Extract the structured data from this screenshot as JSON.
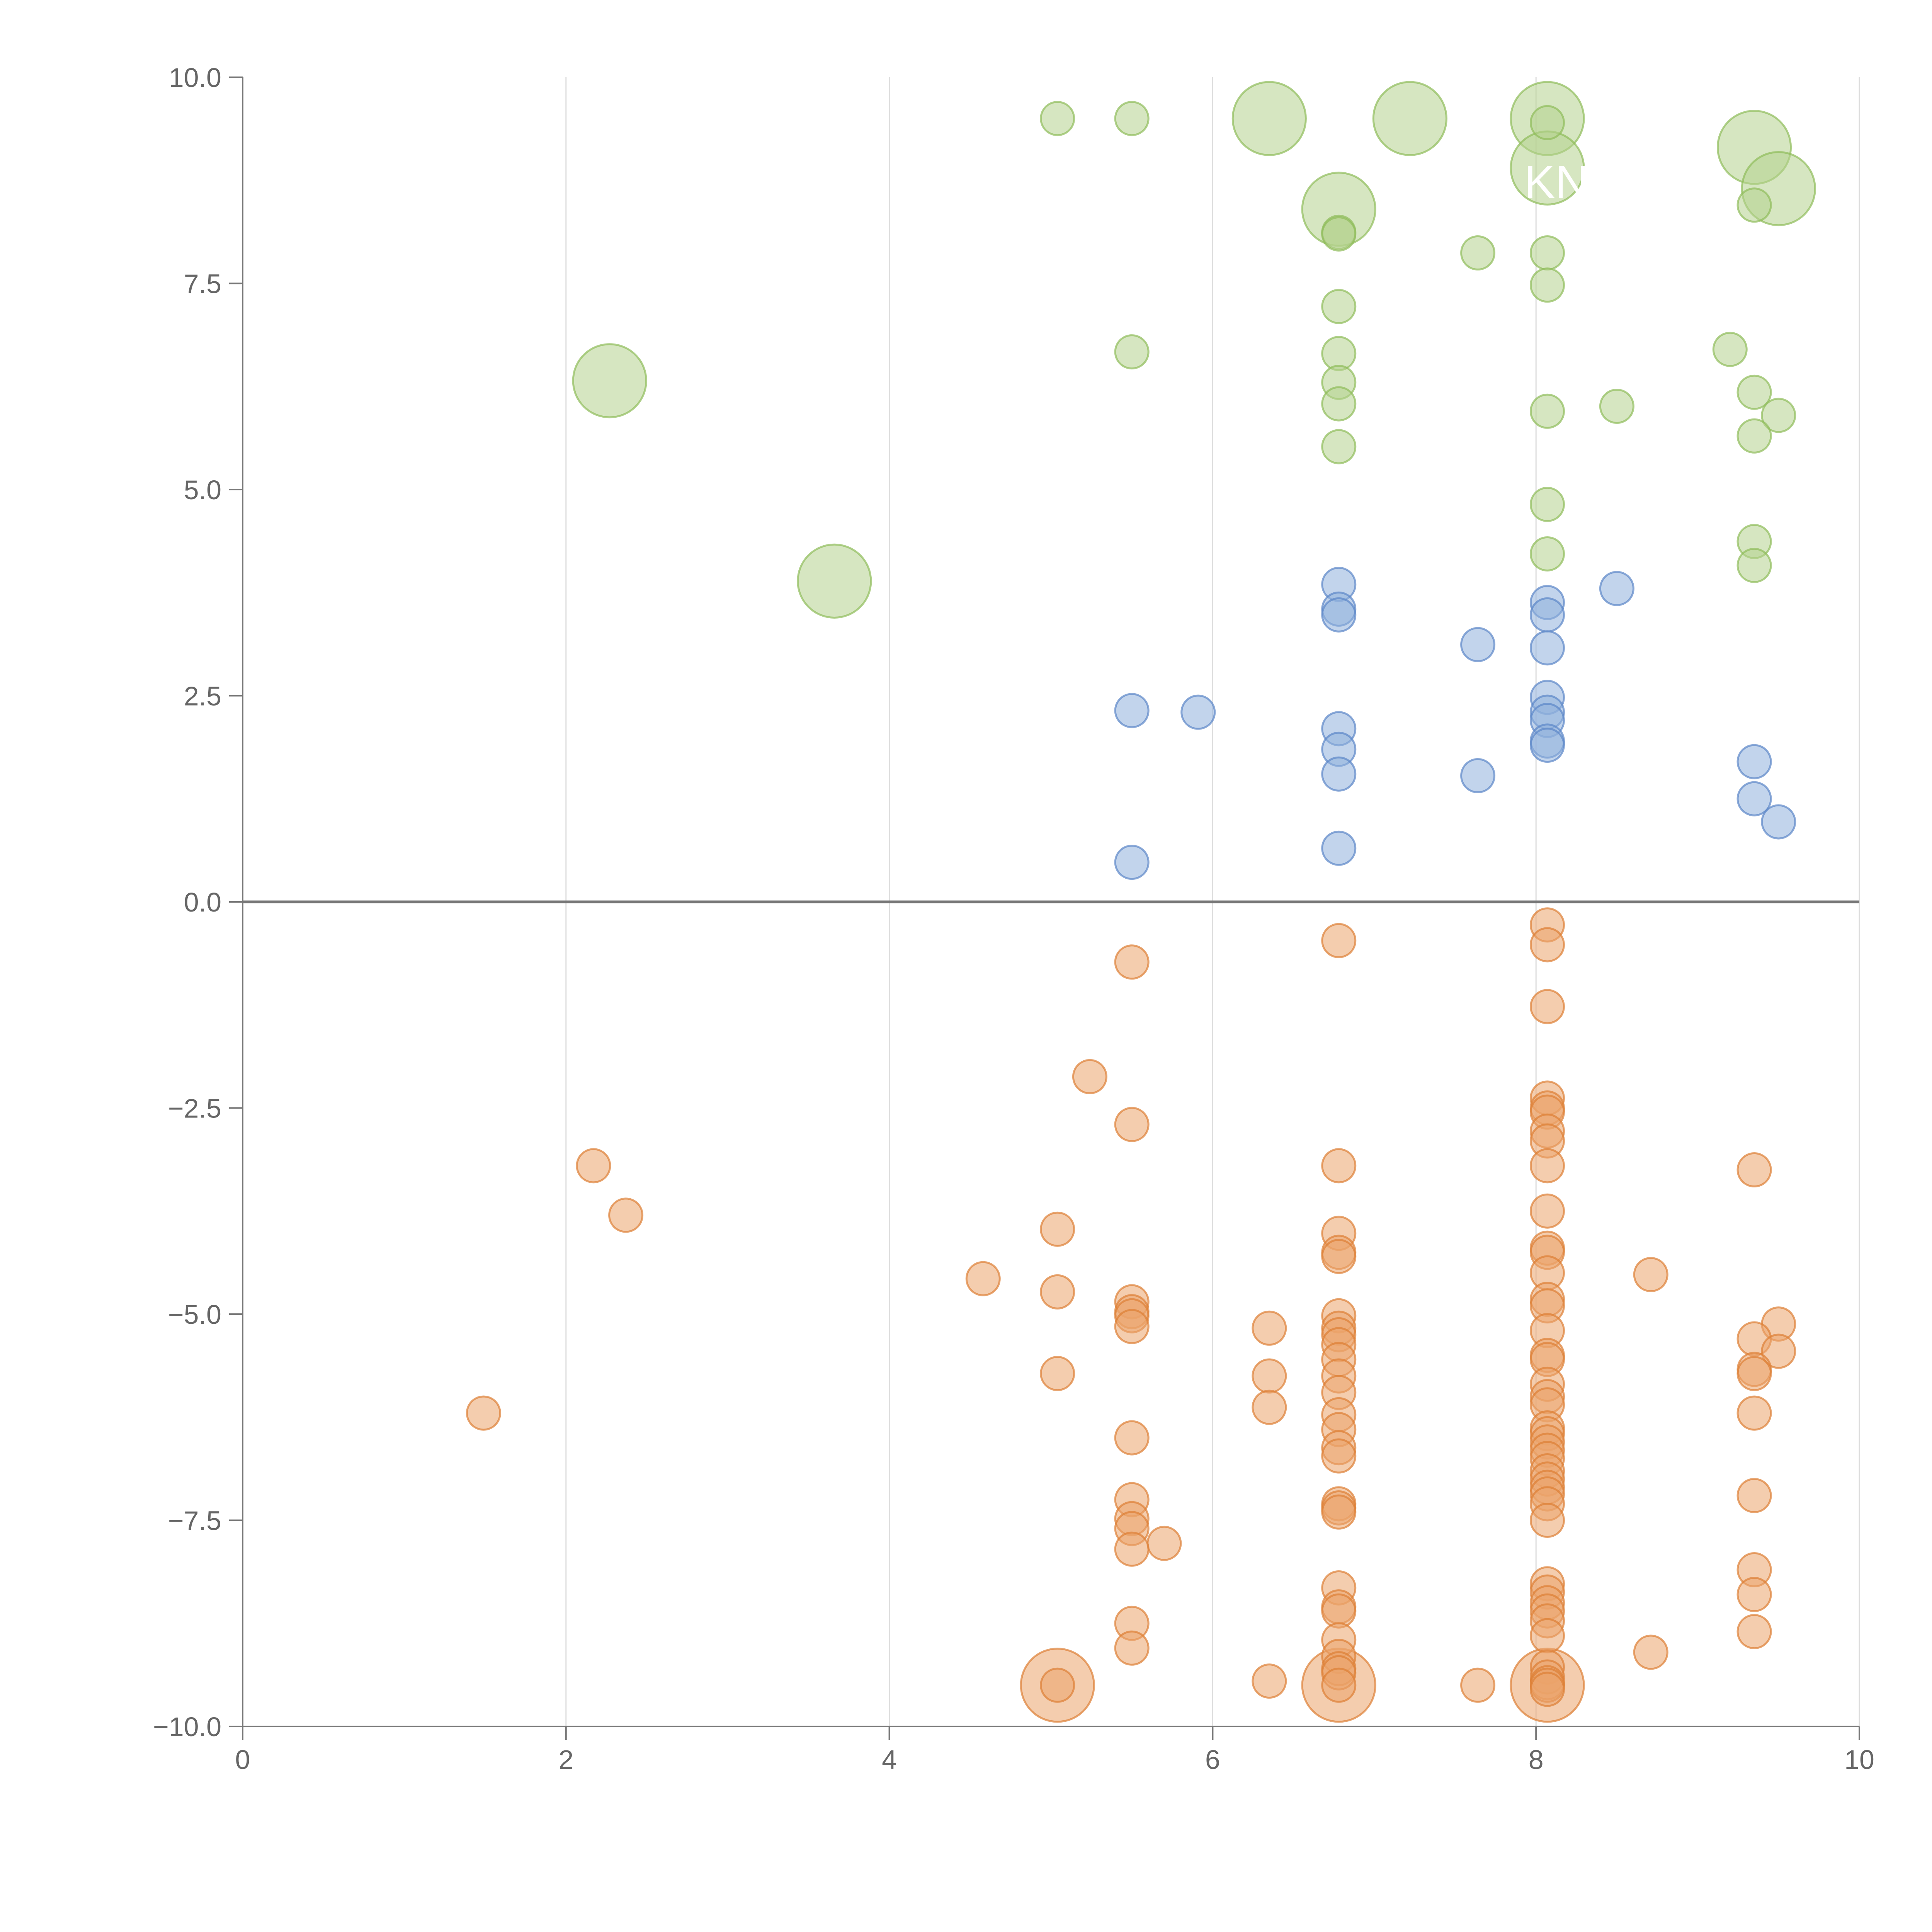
{
  "chart_data": {
    "type": "scatter",
    "title": "",
    "xlabel": "",
    "ylabel": "",
    "xlim": [
      0,
      10
    ],
    "ylim": [
      -10,
      10
    ],
    "x_ticks": [
      "0",
      "2",
      "4",
      "6",
      "8",
      "10"
    ],
    "y_ticks": [
      "10.0",
      "7.5",
      "5.0",
      "2.5",
      "0.0",
      "−2.5",
      "−5.0",
      "−7.5",
      "−10.0"
    ],
    "x_tick_values": [
      0,
      2,
      4,
      6,
      8,
      10
    ],
    "y_tick_values": [
      10,
      7.5,
      5,
      2.5,
      0,
      -2.5,
      -5,
      -7.5,
      -10
    ],
    "grid": "vertical",
    "colors": {
      "green_fill": "#b5d18e",
      "green_stroke": "#8fbc5a",
      "blue_fill": "#8fb0dd",
      "blue_stroke": "#5b86c8",
      "orange_fill": "#eba46b",
      "orange_stroke": "#dd7f35"
    },
    "series": [
      {
        "name": "green",
        "color_key": "green",
        "points": [
          [
            5.04,
            9.5,
            1
          ],
          [
            5.5,
            9.5,
            1
          ],
          [
            6.35,
            9.5,
            2.2
          ],
          [
            7.22,
            9.5,
            2.2
          ],
          [
            8.07,
            9.5,
            2.2
          ],
          [
            8.07,
            9.45,
            1
          ],
          [
            9.35,
            9.15,
            2.2
          ],
          [
            8.07,
            8.9,
            2.2
          ],
          [
            9.5,
            8.65,
            2.2
          ],
          [
            6.78,
            8.4,
            2.2
          ],
          [
            9.35,
            8.45,
            1
          ],
          [
            6.78,
            8.12,
            1
          ],
          [
            6.78,
            8.1,
            1
          ],
          [
            7.64,
            7.87,
            1
          ],
          [
            8.07,
            7.87,
            1
          ],
          [
            8.07,
            7.48,
            1
          ],
          [
            6.78,
            7.22,
            1
          ],
          [
            2.27,
            6.32,
            2.2
          ],
          [
            5.5,
            6.67,
            1
          ],
          [
            9.2,
            6.7,
            1
          ],
          [
            6.78,
            6.65,
            1
          ],
          [
            6.78,
            6.3,
            1
          ],
          [
            9.35,
            6.18,
            1
          ],
          [
            6.78,
            6.04,
            1
          ],
          [
            8.5,
            6.01,
            1
          ],
          [
            8.07,
            5.95,
            1
          ],
          [
            9.5,
            5.9,
            1
          ],
          [
            9.35,
            5.65,
            1
          ],
          [
            6.78,
            5.52,
            1
          ],
          [
            8.07,
            4.82,
            1
          ],
          [
            9.35,
            4.37,
            1
          ],
          [
            8.07,
            4.22,
            1
          ],
          [
            9.35,
            4.08,
            1
          ],
          [
            3.66,
            3.89,
            2.2
          ]
        ]
      },
      {
        "name": "blue",
        "color_key": "blue",
        "points": [
          [
            6.78,
            3.85,
            1
          ],
          [
            8.5,
            3.8,
            1
          ],
          [
            8.07,
            3.63,
            1
          ],
          [
            6.78,
            3.55,
            1
          ],
          [
            6.78,
            3.48,
            1
          ],
          [
            8.07,
            3.48,
            1
          ],
          [
            7.64,
            3.12,
            1
          ],
          [
            8.07,
            3.08,
            1
          ],
          [
            8.07,
            2.48,
            1
          ],
          [
            8.07,
            2.3,
            1
          ],
          [
            5.5,
            2.32,
            1
          ],
          [
            5.91,
            2.3,
            1
          ],
          [
            8.07,
            2.2,
            1
          ],
          [
            6.78,
            2.1,
            1
          ],
          [
            8.07,
            1.95,
            1
          ],
          [
            8.07,
            1.9,
            1
          ],
          [
            6.78,
            1.85,
            1
          ],
          [
            9.35,
            1.7,
            1
          ],
          [
            6.78,
            1.55,
            1
          ],
          [
            7.64,
            1.53,
            1
          ],
          [
            9.35,
            1.25,
            1
          ],
          [
            9.5,
            0.97,
            1
          ],
          [
            6.78,
            0.65,
            1
          ],
          [
            5.5,
            0.48,
            1
          ]
        ]
      },
      {
        "name": "orange",
        "color_key": "orange",
        "points": [
          [
            8.07,
            -0.28,
            1
          ],
          [
            6.78,
            -0.47,
            1
          ],
          [
            8.07,
            -0.52,
            1
          ],
          [
            5.5,
            -0.73,
            1
          ],
          [
            8.07,
            -1.27,
            1
          ],
          [
            5.24,
            -2.12,
            1
          ],
          [
            8.07,
            -2.38,
            1
          ],
          [
            8.07,
            -2.5,
            1
          ],
          [
            8.07,
            -2.55,
            1
          ],
          [
            5.5,
            -2.7,
            1
          ],
          [
            8.07,
            -2.78,
            1
          ],
          [
            8.07,
            -2.9,
            1
          ],
          [
            2.17,
            -3.2,
            1
          ],
          [
            6.78,
            -3.2,
            1
          ],
          [
            8.07,
            -3.2,
            1
          ],
          [
            9.35,
            -3.25,
            1
          ],
          [
            8.07,
            -3.75,
            1
          ],
          [
            2.37,
            -3.8,
            1
          ],
          [
            5.04,
            -3.97,
            1
          ],
          [
            6.78,
            -4.02,
            1
          ],
          [
            8.07,
            -4.2,
            1
          ],
          [
            8.07,
            -4.25,
            1
          ],
          [
            6.78,
            -4.25,
            1
          ],
          [
            6.78,
            -4.3,
            1
          ],
          [
            8.07,
            -4.5,
            1
          ],
          [
            8.71,
            -4.52,
            1
          ],
          [
            4.58,
            -4.57,
            1
          ],
          [
            5.04,
            -4.73,
            1
          ],
          [
            5.5,
            -4.85,
            1
          ],
          [
            8.07,
            -4.82,
            1
          ],
          [
            8.07,
            -4.9,
            1
          ],
          [
            5.5,
            -4.97,
            1
          ],
          [
            5.5,
            -5.02,
            1
          ],
          [
            6.78,
            -5.02,
            1
          ],
          [
            5.5,
            -5.15,
            1
          ],
          [
            6.35,
            -5.17,
            1
          ],
          [
            6.78,
            -5.17,
            1
          ],
          [
            9.5,
            -5.12,
            1
          ],
          [
            8.07,
            -5.2,
            1
          ],
          [
            6.78,
            -5.25,
            1
          ],
          [
            9.35,
            -5.3,
            1
          ],
          [
            6.78,
            -5.37,
            1
          ],
          [
            9.5,
            -5.45,
            1
          ],
          [
            8.07,
            -5.5,
            1
          ],
          [
            8.07,
            -5.55,
            1
          ],
          [
            6.78,
            -5.55,
            1
          ],
          [
            9.35,
            -5.67,
            1
          ],
          [
            5.04,
            -5.72,
            1
          ],
          [
            6.35,
            -5.75,
            1
          ],
          [
            9.35,
            -5.72,
            1
          ],
          [
            6.78,
            -5.75,
            1
          ],
          [
            8.07,
            -5.85,
            1
          ],
          [
            6.78,
            -5.95,
            1
          ],
          [
            8.07,
            -6.0,
            1
          ],
          [
            8.07,
            -6.1,
            1
          ],
          [
            6.35,
            -6.13,
            1
          ],
          [
            1.49,
            -6.2,
            1
          ],
          [
            9.35,
            -6.2,
            1
          ],
          [
            6.78,
            -6.22,
            1
          ],
          [
            8.07,
            -6.38,
            1
          ],
          [
            6.78,
            -6.4,
            1
          ],
          [
            8.07,
            -6.45,
            1
          ],
          [
            5.5,
            -6.5,
            1
          ],
          [
            8.07,
            -6.55,
            1
          ],
          [
            6.78,
            -6.62,
            1
          ],
          [
            8.07,
            -6.65,
            1
          ],
          [
            6.78,
            -6.72,
            1
          ],
          [
            8.07,
            -6.75,
            1
          ],
          [
            8.07,
            -6.9,
            1
          ],
          [
            8.07,
            -7.0,
            1
          ],
          [
            8.07,
            -7.1,
            1
          ],
          [
            8.07,
            -7.18,
            1
          ],
          [
            9.35,
            -7.2,
            1
          ],
          [
            5.5,
            -7.25,
            1
          ],
          [
            6.78,
            -7.3,
            1
          ],
          [
            8.07,
            -7.3,
            1
          ],
          [
            6.78,
            -7.35,
            1
          ],
          [
            6.78,
            -7.4,
            1
          ],
          [
            5.5,
            -7.48,
            1
          ],
          [
            8.07,
            -7.5,
            1
          ],
          [
            5.5,
            -7.6,
            1
          ],
          [
            5.7,
            -7.78,
            1
          ],
          [
            5.5,
            -7.85,
            1
          ],
          [
            9.35,
            -8.1,
            1
          ],
          [
            8.07,
            -8.27,
            1
          ],
          [
            6.78,
            -8.32,
            1
          ],
          [
            8.07,
            -8.37,
            1
          ],
          [
            9.35,
            -8.4,
            1
          ],
          [
            8.07,
            -8.5,
            1
          ],
          [
            6.78,
            -8.55,
            1
          ],
          [
            6.78,
            -8.6,
            1
          ],
          [
            8.07,
            -8.6,
            1
          ],
          [
            8.07,
            -8.72,
            1
          ],
          [
            5.5,
            -8.75,
            1
          ],
          [
            9.35,
            -8.85,
            1
          ],
          [
            8.07,
            -8.9,
            1
          ],
          [
            6.78,
            -8.95,
            1
          ],
          [
            5.5,
            -9.05,
            1
          ],
          [
            8.71,
            -9.1,
            1
          ],
          [
            6.78,
            -9.15,
            1
          ],
          [
            8.07,
            -9.28,
            1
          ],
          [
            6.78,
            -9.3,
            1
          ],
          [
            6.78,
            -9.35,
            1
          ],
          [
            6.35,
            -9.45,
            1
          ],
          [
            8.07,
            -9.4,
            1
          ],
          [
            8.07,
            -9.47,
            1
          ],
          [
            5.04,
            -9.5,
            2.2
          ],
          [
            5.04,
            -9.5,
            1
          ],
          [
            6.78,
            -9.5,
            2.2
          ],
          [
            6.78,
            -9.5,
            1
          ],
          [
            7.64,
            -9.5,
            1
          ],
          [
            8.07,
            -9.5,
            2.2
          ],
          [
            8.07,
            -9.5,
            1
          ],
          [
            8.07,
            -9.55,
            1
          ]
        ]
      }
    ],
    "annotations": [
      {
        "text": "KN",
        "x": 8.07,
        "y": 8.75
      }
    ]
  }
}
